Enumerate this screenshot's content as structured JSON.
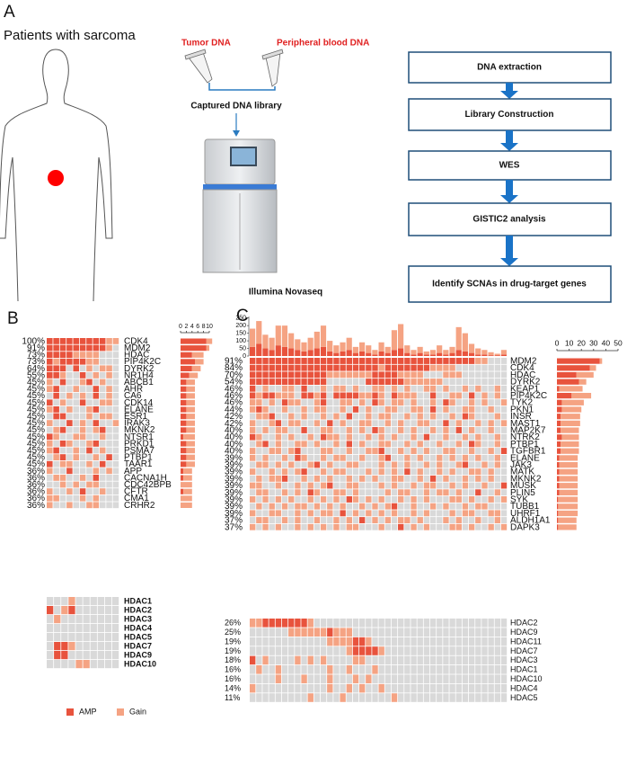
{
  "panel_labels": [
    "A",
    "B",
    "C"
  ],
  "panel_a": {
    "heading": "Patients with sarcoma",
    "tumor": "Tumor DNA",
    "blood": "Peripheral blood DNA",
    "library": "Captured DNA library",
    "sequencer": "Illumina Novaseq",
    "steps": [
      "DNA extraction",
      "Library Construction",
      "WES",
      "GISTIC2 analysis",
      "Identify SCNAs in drug-target genes"
    ]
  },
  "legend": {
    "amp": "AMP",
    "gain": "Gain"
  },
  "colors": {
    "amp": "#e8533d",
    "gain": "#f5a383",
    "none": "#d9d9d9"
  },
  "panel_b": {
    "xlim": [
      0,
      10
    ],
    "xticks": [
      0,
      2,
      4,
      6,
      8,
      10
    ],
    "rows": [
      {
        "gene": "CDK4",
        "pct": "100%",
        "cells": "22222222211",
        "amp": 9,
        "gain": 2
      },
      {
        "gene": "MDM2",
        "pct": "91%",
        "cells": "22222222210",
        "amp": 9,
        "gain": 1
      },
      {
        "gene": "HDAC",
        "pct": "73%",
        "cells": "22221111000",
        "amp": 4,
        "gain": 4
      },
      {
        "gene": "PIP4K2C",
        "pct": "73%",
        "cells": "21222211000",
        "amp": 5,
        "gain": 3
      },
      {
        "gene": "DYRK2",
        "pct": "64%",
        "cells": "22202010110",
        "amp": 4,
        "gain": 3
      },
      {
        "gene": "NR1H4",
        "pct": "55%",
        "cells": "22100201010",
        "amp": 3,
        "gain": 3
      },
      {
        "gene": "ABCB1",
        "pct": "45%",
        "cells": "10200120100",
        "amp": 2,
        "gain": 3
      },
      {
        "gene": "AHR",
        "pct": "45%",
        "cells": "12001002010",
        "amp": 2,
        "gain": 3
      },
      {
        "gene": "CA6",
        "pct": "45%",
        "cells": "02010102010",
        "amp": 2,
        "gain": 3
      },
      {
        "gene": "CDK14",
        "pct": "45%",
        "cells": "20100200110",
        "amp": 2,
        "gain": 3
      },
      {
        "gene": "ELANE",
        "pct": "45%",
        "cells": "12010012000",
        "amp": 2,
        "gain": 3
      },
      {
        "gene": "ESR1",
        "pct": "45%",
        "cells": "02200010110",
        "amp": 2,
        "gain": 3
      },
      {
        "gene": "IRAK3",
        "pct": "45%",
        "cells": "10020102001",
        "amp": 2,
        "gain": 3
      },
      {
        "gene": "MKNK2",
        "pct": "45%",
        "cells": "01200101200",
        "amp": 2,
        "gain": 3
      },
      {
        "gene": "NTSR1",
        "pct": "45%",
        "cells": "21001100100",
        "amp": 1,
        "gain": 4
      },
      {
        "gene": "PRKD1",
        "pct": "45%",
        "cells": "10210012000",
        "amp": 2,
        "gain": 3
      },
      {
        "gene": "PSMA7",
        "pct": "45%",
        "cells": "12001020100",
        "amp": 2,
        "gain": 3
      },
      {
        "gene": "PTBP1",
        "pct": "45%",
        "cells": "01201001020",
        "amp": 2,
        "gain": 3
      },
      {
        "gene": "TAAR1",
        "pct": "45%",
        "cells": "20110010200",
        "amp": 2,
        "gain": 3
      },
      {
        "gene": "APP",
        "pct": "36%",
        "cells": "10020001010",
        "amp": 1,
        "gain": 3
      },
      {
        "gene": "CACNA1H",
        "pct": "36%",
        "cells": "01100102000",
        "amp": 1,
        "gain": 3
      },
      {
        "gene": "CDC42BPB",
        "pct": "36%",
        "cells": "00101011000",
        "amp": 0,
        "gain": 4
      },
      {
        "gene": "CFTR",
        "pct": "36%",
        "cells": "10010200100",
        "amp": 1,
        "gain": 3
      },
      {
        "gene": "CMA1",
        "pct": "36%",
        "cells": "11000101000",
        "amp": 0,
        "gain": 4
      },
      {
        "gene": "CRHR2",
        "pct": "36%",
        "cells": "10010011000",
        "amp": 0,
        "gain": 4
      }
    ],
    "hdac_rows": [
      {
        "gene": "HDAC1",
        "cells": "0001000000"
      },
      {
        "gene": "HDAC2",
        "cells": "2012000000"
      },
      {
        "gene": "HDAC3",
        "cells": "0100000000"
      },
      {
        "gene": "HDAC4",
        "cells": "0000000000"
      },
      {
        "gene": "HDAC5",
        "cells": "0000000000"
      },
      {
        "gene": "HDAC7",
        "cells": "0221000000"
      },
      {
        "gene": "HDAC9",
        "cells": "0220000000"
      },
      {
        "gene": "HDAC10",
        "cells": "0000110000"
      }
    ]
  },
  "panel_c": {
    "top": {
      "ylim": [
        0,
        260
      ],
      "yticks": [
        0,
        50,
        100,
        150,
        200,
        250
      ],
      "amp": [
        60,
        80,
        50,
        40,
        70,
        60,
        50,
        40,
        30,
        40,
        50,
        60,
        30,
        20,
        30,
        40,
        20,
        30,
        20,
        10,
        30,
        20,
        40,
        50,
        20,
        10,
        20,
        10,
        10,
        20,
        10,
        20,
        40,
        30,
        20,
        10,
        10,
        5,
        5,
        10
      ],
      "gain": [
        120,
        150,
        90,
        80,
        130,
        140,
        100,
        70,
        60,
        80,
        110,
        140,
        70,
        50,
        60,
        80,
        40,
        60,
        50,
        30,
        60,
        40,
        130,
        160,
        50,
        30,
        40,
        20,
        30,
        50,
        30,
        40,
        150,
        120,
        60,
        40,
        30,
        20,
        10,
        30
      ]
    },
    "xlim": [
      0,
      50
    ],
    "xticks": [
      0,
      10,
      20,
      30,
      40,
      50
    ],
    "rows": [
      {
        "gene": "MDM2",
        "pct": "91%",
        "cells": "2222222222222222222222222222222222211000",
        "amp": 35,
        "gain": 2
      },
      {
        "gene": "CDK4",
        "pct": "84%",
        "cells": "2222222222222222222212222222111100000000",
        "amp": 27,
        "gain": 5
      },
      {
        "gene": "HDAC",
        "pct": "70%",
        "cells": "2222222222221111111222211110001110000000",
        "amp": 16,
        "gain": 14
      },
      {
        "gene": "DYRK2",
        "pct": "54%",
        "cells": "2222222222220000002222221111110000000000",
        "amp": 18,
        "gain": 6
      },
      {
        "gene": "KEAP1",
        "pct": "46%",
        "cells": "2010011020010110100110101001101001010010",
        "amp": 2,
        "gain": 19
      },
      {
        "gene": "PIP4K2C",
        "pct": "46%",
        "cells": "2122111022120222211210211100200110201010",
        "amp": 12,
        "gain": 16
      },
      {
        "gene": "TYK2",
        "pct": "46%",
        "cells": "1101021100120011010210110100102100101001",
        "amp": 4,
        "gain": 18
      },
      {
        "gene": "PKN1",
        "pct": "44%",
        "cells": "1210010010110010201001100110201001100100",
        "amp": 4,
        "gain": 16
      },
      {
        "gene": "INSR",
        "pct": "42%",
        "cells": "0112001010010102001011001010100102100010",
        "amp": 3,
        "gain": 16
      },
      {
        "gene": "MAST1",
        "pct": "42%",
        "cells": "1001201100102010011001010011002010010101",
        "amp": 3,
        "gain": 16
      },
      {
        "gene": "MAP2K7",
        "pct": "40%",
        "cells": "1010110020011001010210010100101020100100",
        "amp": 3,
        "gain": 15
      },
      {
        "gene": "NTRK2",
        "pct": "40%",
        "cells": "2100101001021101001010100102001001010010",
        "amp": 4,
        "gain": 14
      },
      {
        "gene": "PTBP1",
        "pct": "40%",
        "cells": "0120100110100102010011001010010010210010",
        "amp": 3,
        "gain": 15
      },
      {
        "gene": "TGFBR1",
        "pct": "40%",
        "cells": "1001101200011001001120010101001100100102",
        "amp": 3,
        "gain": 15
      },
      {
        "gene": "ELANE",
        "pct": "39%",
        "cells": "1010010210010110010012001010010101010010",
        "amp": 2,
        "gain": 15
      },
      {
        "gene": "JAK3",
        "pct": "39%",
        "cells": "0110101001201001100010101001010012001010",
        "amp": 2,
        "gain": 15
      },
      {
        "gene": "MATK",
        "pct": "39%",
        "cells": "1001010120010110001010102010010100110100",
        "amp": 2,
        "gain": 15
      },
      {
        "gene": "MKNK2",
        "pct": "39%",
        "cells": "0101120010101001010100110010201001010100",
        "amp": 2,
        "gain": 15
      },
      {
        "gene": "MUSK",
        "pct": "39%",
        "cells": "1100100101012001100010100101100101001002",
        "amp": 2,
        "gain": 15
      },
      {
        "gene": "PLIN5",
        "pct": "39%",
        "cells": "0110010102100110100001011001011010020010",
        "amp": 2,
        "gain": 15
      },
      {
        "gene": "SYK",
        "pct": "39%",
        "cells": "1010101001010102101010010101000110100101",
        "amp": 1,
        "gain": 16
      },
      {
        "gene": "TUBB1",
        "pct": "39%",
        "cells": "0101010110101010010101200100101001011000",
        "amp": 1,
        "gain": 16
      },
      {
        "gene": "UHRF1",
        "pct": "39%",
        "cells": "1001100101011020101010100101000101100110",
        "amp": 1,
        "gain": 16
      },
      {
        "gene": "ALDH1A1",
        "pct": "37%",
        "cells": "0110010100100101020101011010001010010010",
        "amp": 1,
        "gain": 15
      },
      {
        "gene": "DAPK3",
        "pct": "37%",
        "cells": "1010100101010101100010020101000110100101",
        "amp": 1,
        "gain": 15
      }
    ],
    "hdac_rows": [
      {
        "gene": "HDAC2",
        "pct": "26%",
        "cells": "1122222221000000000000000000000000000000"
      },
      {
        "gene": "HDAC9",
        "pct": "25%",
        "cells": "0000001111112111000000000000000000000000"
      },
      {
        "gene": "HDAC11",
        "pct": "19%",
        "cells": "0000000000001111221000000000000000000000"
      },
      {
        "gene": "HDAC7",
        "pct": "19%",
        "cells": "0000000000000001222210000000000000000000"
      },
      {
        "gene": "HDAC3",
        "pct": "18%",
        "cells": "2010000101010000110000000000000000000000"
      },
      {
        "gene": "HDAC1",
        "pct": "16%",
        "cells": "0100100000001001000100000000000000000000"
      },
      {
        "gene": "HDAC10",
        "pct": "16%",
        "cells": "0000100010001000101000000000000000000000"
      },
      {
        "gene": "HDAC4",
        "pct": "14%",
        "cells": "1000000000001001010010000000000000000000"
      },
      {
        "gene": "HDAC5",
        "pct": "11%",
        "cells": "0000000001000010000000100000000000000000"
      }
    ]
  }
}
